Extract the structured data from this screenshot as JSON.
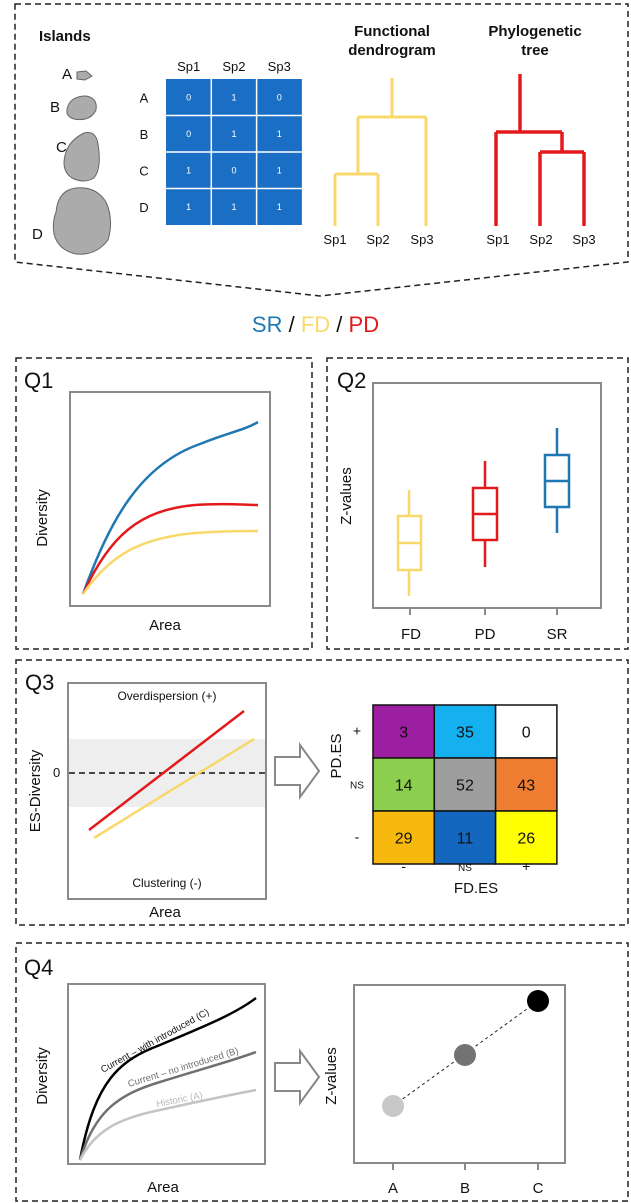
{
  "top": {
    "islands_title": "Islands",
    "island_labels": [
      "A",
      "B",
      "C",
      "D"
    ],
    "matrix": {
      "col_headers": [
        "Sp1",
        "Sp2",
        "Sp3"
      ],
      "row_headers": [
        "A",
        "B",
        "C",
        "D"
      ],
      "cells": [
        [
          "0",
          "1",
          "0"
        ],
        [
          "0",
          "1",
          "1"
        ],
        [
          "1",
          "0",
          "1"
        ],
        [
          "1",
          "1",
          "1"
        ]
      ],
      "color": "#1a6fc4"
    },
    "functional_title_1": "Functional",
    "functional_title_2": "dendrogram",
    "functional_leaves": [
      "Sp1",
      "Sp2",
      "Sp3"
    ],
    "functional_color": "#f9d86b",
    "phylo_title_1": "Phylogenetic",
    "phylo_title_2": "tree",
    "phylo_leaves": [
      "Sp1",
      "Sp2",
      "Sp3"
    ],
    "phylo_color": "#e3191c"
  },
  "legend": {
    "sr": "SR",
    "fd": "FD",
    "pd": "PD",
    "slash": "/",
    "sr_color": "#1f77b4",
    "fd_color": "#f9d86b",
    "pd_color": "#e3191c"
  },
  "q1": {
    "title": "Q1",
    "ylabel": "Diversity",
    "xlabel": "Area"
  },
  "q2": {
    "title": "Q2",
    "ylabel": "Z-values",
    "categories": [
      "FD",
      "PD",
      "SR"
    ]
  },
  "q3": {
    "title": "Q3",
    "ylabel": "ES-Diversity",
    "xlabel": "Area",
    "zero_label": "0",
    "top_note": "Overdispersion (+)",
    "bottom_note": "Clustering (-)",
    "grid_ylabel": "PD.ES",
    "grid_xlabel": "FD.ES",
    "row_labels": [
      "+",
      "NS",
      "-"
    ],
    "col_labels": [
      "-",
      "NS",
      "+"
    ],
    "grid": [
      [
        {
          "v": "3",
          "c": "#9b1fa0"
        },
        {
          "v": "35",
          "c": "#14b0f0"
        },
        {
          "v": "0",
          "c": "#ffffff"
        }
      ],
      [
        {
          "v": "14",
          "c": "#8ccf4e"
        },
        {
          "v": "52",
          "c": "#9e9e9e"
        },
        {
          "v": "43",
          "c": "#ef7d32"
        }
      ],
      [
        {
          "v": "29",
          "c": "#f8b90e"
        },
        {
          "v": "11",
          "c": "#1367bf"
        },
        {
          "v": "26",
          "c": "#ffff00"
        }
      ]
    ]
  },
  "q4": {
    "title": "Q4",
    "ylabel": "Diversity",
    "xlabel": "Area",
    "curve_labels": [
      "Current – with introduced (C)",
      "Current – no introduced (B)",
      "Historic (A)"
    ],
    "z_ylabel": "Z-values",
    "categories": [
      "A",
      "B",
      "C"
    ]
  }
}
